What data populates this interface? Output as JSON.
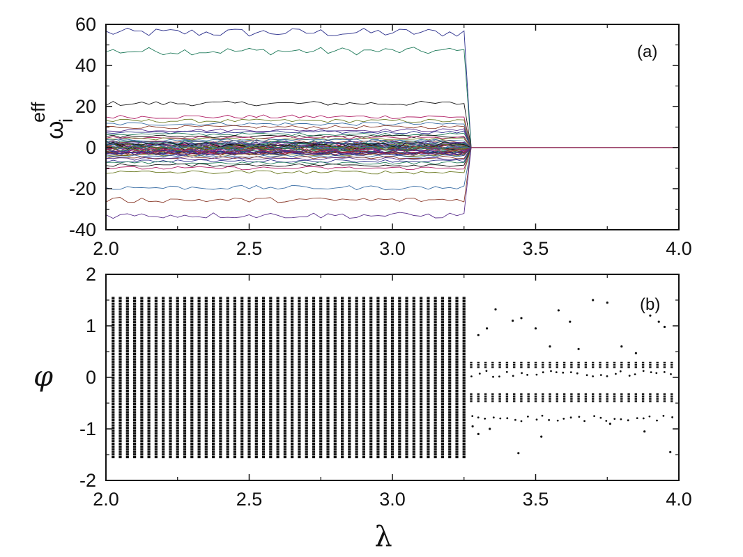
{
  "chart_data": [
    {
      "type": "line",
      "panel_label": "(a)",
      "ylabel": {
        "symbol": "ω",
        "subscript": "i",
        "superscript": "eff"
      },
      "xlabel": "",
      "xlim": [
        2.0,
        4.0
      ],
      "ylim": [
        -40,
        60
      ],
      "xticks": [
        "2.0",
        "2.5",
        "3.0",
        "3.5",
        "4.0"
      ],
      "yticks": [
        "-40",
        "-20",
        "0",
        "20",
        "40",
        "60"
      ],
      "x_step": 0.025,
      "collapse_x": 3.275,
      "series_colors": [
        "#2b2f8c",
        "#1f7a5a",
        "#111111",
        "#b01e64",
        "#6b7a22",
        "#3a6ea5",
        "#8a3a2a",
        "#5a2f8c"
      ],
      "series_levels": [
        56,
        47,
        21.5,
        15,
        13,
        11.5,
        10,
        8.5,
        7.5,
        6.5,
        5.5,
        4.8,
        4.2,
        3.6,
        3.0,
        2.5,
        2.0,
        1.5,
        1.0,
        0.6,
        0.2,
        -0.2,
        -0.6,
        -1.0,
        -1.5,
        -2.0,
        -2.5,
        -3.0,
        -3.6,
        -4.2,
        -4.8,
        -5.5,
        -6.5,
        -7.5,
        -8.5,
        -10,
        -12,
        -19.5,
        -25.5,
        -33
      ],
      "post_collapse_value": 0
    },
    {
      "type": "scatter",
      "panel_label": "(b)",
      "ylabel": "φ",
      "xlabel": "λ",
      "xlim": [
        2.0,
        4.0
      ],
      "ylim": [
        -2,
        2
      ],
      "xticks": [
        "2.0",
        "2.5",
        "3.0",
        "3.5",
        "4.0"
      ],
      "yticks": [
        "-2",
        "-1",
        "0",
        "1",
        "2"
      ],
      "x_step": 0.025,
      "unsync_range": [
        -1.57,
        1.57
      ],
      "unsync_x_end": 3.25,
      "sync_x_start": 3.275,
      "sync_bands": [
        [
          0.18,
          0.3
        ],
        [
          -0.48,
          -0.3
        ]
      ],
      "sync_outlier_levels": [
        0.07,
        -0.8
      ],
      "scattered_points": [
        [
          3.33,
          0.95
        ],
        [
          3.36,
          1.32
        ],
        [
          3.42,
          1.1
        ],
        [
          3.45,
          1.15
        ],
        [
          3.5,
          0.95
        ],
        [
          3.55,
          0.6
        ],
        [
          3.58,
          1.3
        ],
        [
          3.62,
          1.08
        ],
        [
          3.65,
          0.55
        ],
        [
          3.7,
          1.5
        ],
        [
          3.75,
          1.45
        ],
        [
          3.8,
          0.6
        ],
        [
          3.85,
          0.47
        ],
        [
          3.9,
          1.2
        ],
        [
          3.93,
          1.08
        ],
        [
          3.95,
          0.98
        ],
        [
          3.3,
          0.82
        ],
        [
          3.34,
          -1.0
        ],
        [
          3.44,
          -1.47
        ],
        [
          3.52,
          -1.15
        ],
        [
          3.76,
          -0.9
        ],
        [
          3.88,
          -1.05
        ],
        [
          3.97,
          -1.45
        ],
        [
          3.28,
          -0.95
        ],
        [
          3.3,
          -1.1
        ]
      ]
    }
  ]
}
